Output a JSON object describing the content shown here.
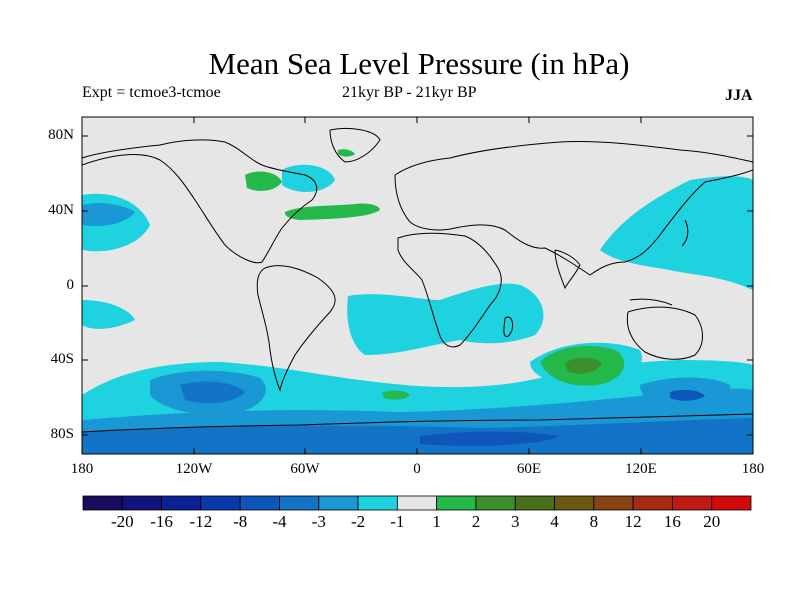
{
  "header": {
    "title": "Mean Sea Level Pressure (in hPa)",
    "experiment": "Expt = tcmoe3-tcmoe",
    "period": "21kyr BP - 21kyr BP",
    "season": "JJA"
  },
  "axes": {
    "lat_labels": [
      "80N",
      "40N",
      "0",
      "40S",
      "80S"
    ],
    "lon_labels": [
      "180",
      "120W",
      "60W",
      "0",
      "60E",
      "120E",
      "180"
    ]
  },
  "colorbar": {
    "levels": [
      "-20",
      "-16",
      "-12",
      "-8",
      "-4",
      "-3",
      "-2",
      "-1",
      "1",
      "2",
      "3",
      "4",
      "8",
      "12",
      "16",
      "20"
    ],
    "colors": [
      "#1a0a5e",
      "#13137f",
      "#0b2296",
      "#0a3aaa",
      "#0e56b9",
      "#1374c7",
      "#1a98d6",
      "#1ed2e0",
      "#e6e6e6",
      "#25b84b",
      "#3c8f2c",
      "#4a6f18",
      "#6a5a10",
      "#884314",
      "#a52c14",
      "#bf1a14",
      "#d40a0a"
    ]
  },
  "colors": {
    "land_background": "#e6e6e6",
    "coastline": "#000000"
  }
}
